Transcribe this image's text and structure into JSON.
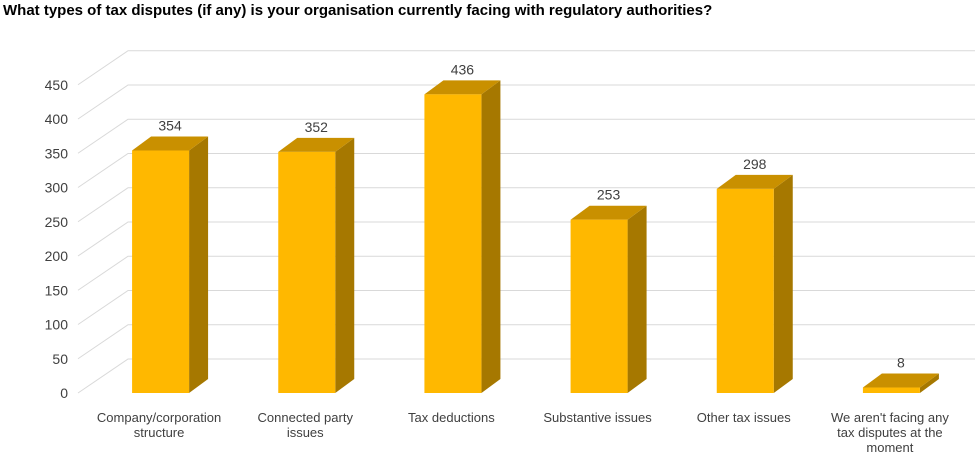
{
  "title": "What types of tax disputes (if any) is your organisation currently facing with regulatory authorities?",
  "chart_data": {
    "type": "bar",
    "title": "What types of tax disputes (if any) is your organisation currently facing with regulatory authorities?",
    "categories": [
      "Company/corporation structure",
      "Connected party issues",
      "Tax deductions",
      "Substantive issues",
      "Other tax issues",
      "We aren't facing any tax disputes at the moment"
    ],
    "category_label_lines": [
      [
        "Company/corporation",
        "structure"
      ],
      [
        "Connected party",
        "issues"
      ],
      [
        "Tax deductions"
      ],
      [
        "Substantive issues"
      ],
      [
        "Other tax issues"
      ],
      [
        "We aren't facing any",
        "tax disputes at the",
        "moment"
      ]
    ],
    "values": [
      354,
      352,
      436,
      253,
      298,
      8
    ],
    "data_labels": [
      "354",
      "352",
      "436",
      "253",
      "298",
      "8"
    ],
    "ylim": [
      0,
      450
    ],
    "yticks": [
      0,
      50,
      100,
      150,
      200,
      250,
      300,
      350,
      400,
      450
    ],
    "ytick_labels": [
      "0",
      "50",
      "100",
      "150",
      "200",
      "250",
      "300",
      "350",
      "400",
      "450"
    ],
    "xlabel": "",
    "ylabel": "",
    "grid": true,
    "style": "3d-column",
    "colors": {
      "bar_front": "#FFB800",
      "bar_side": "#A67800",
      "bar_top": "#C99000",
      "grid": "#D9D9D9",
      "text": "#404040"
    }
  }
}
